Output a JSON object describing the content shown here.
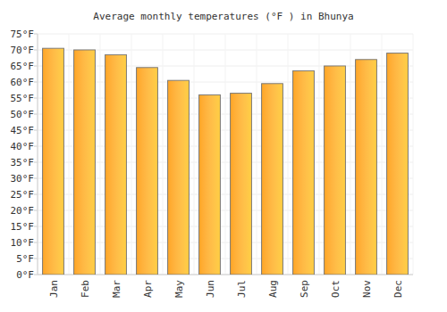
{
  "chart_data": {
    "type": "bar",
    "title": "Average monthly temperatures (°F ) in Bhunya",
    "categories": [
      "Jan",
      "Feb",
      "Mar",
      "Apr",
      "May",
      "Jun",
      "Jul",
      "Aug",
      "Sep",
      "Oct",
      "Nov",
      "Dec"
    ],
    "values": [
      70.5,
      70,
      68.5,
      64.5,
      60.5,
      56,
      56.5,
      59.5,
      63.5,
      65,
      67,
      69
    ],
    "color": "#ffa726",
    "ylim": [
      0,
      75
    ],
    "yticks": [
      {
        "value": 0,
        "label": "0°F"
      },
      {
        "value": 5,
        "label": "5°F"
      },
      {
        "value": 10,
        "label": "10°F"
      },
      {
        "value": 15,
        "label": "15°F"
      },
      {
        "value": 20,
        "label": "20°F"
      },
      {
        "value": 25,
        "label": "25°F"
      },
      {
        "value": 30,
        "label": "30°F"
      },
      {
        "value": 35,
        "label": "35°F"
      },
      {
        "value": 40,
        "label": "40°F"
      },
      {
        "value": 45,
        "label": "45°F"
      },
      {
        "value": 50,
        "label": "50°F"
      },
      {
        "value": 55,
        "label": "55°F"
      },
      {
        "value": 60,
        "label": "60°F"
      },
      {
        "value": 65,
        "label": "65°F"
      },
      {
        "value": 70,
        "label": "70°F"
      },
      {
        "value": 75,
        "label": "75°F"
      }
    ],
    "grid": true
  }
}
